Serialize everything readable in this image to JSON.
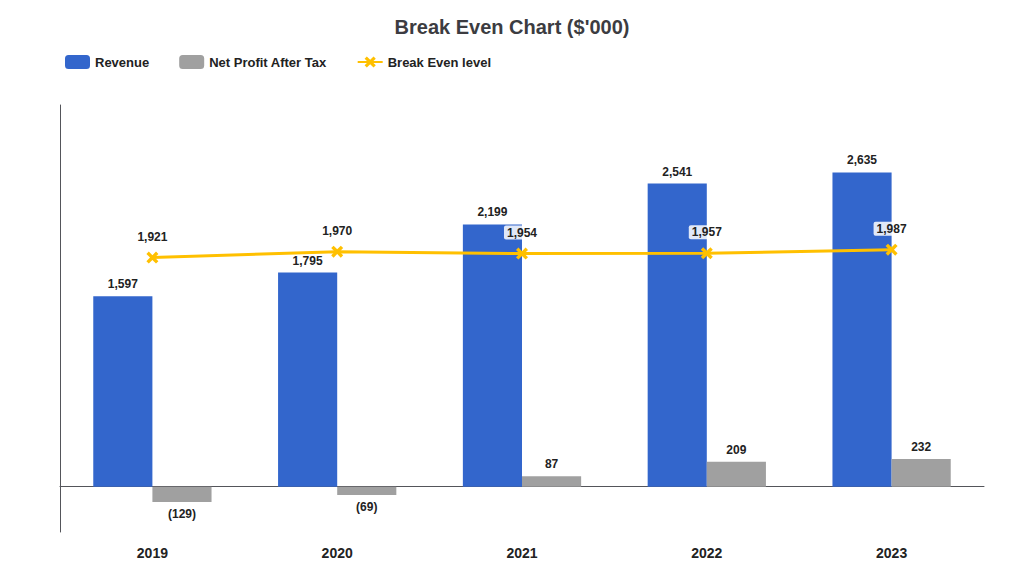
{
  "chart_data": {
    "type": "bar",
    "title": "Break Even Chart ($'000)",
    "categories": [
      "2019",
      "2020",
      "2021",
      "2022",
      "2023"
    ],
    "series": [
      {
        "name": "Revenue",
        "type": "bar",
        "color": "#3366CC",
        "values": [
          1597,
          1795,
          2199,
          2541,
          2635
        ],
        "value_labels": [
          "1,597",
          "1,795",
          "2,199",
          "2,541",
          "2,635"
        ]
      },
      {
        "name": "Net Profit After Tax",
        "type": "bar",
        "color": "#A0A0A0",
        "values": [
          -129,
          -69,
          87,
          209,
          232
        ],
        "value_labels": [
          "(129)",
          "(69)",
          "87",
          "209",
          "232"
        ]
      },
      {
        "name": "Break Even level",
        "type": "line",
        "color": "#FFC000",
        "marker": "x",
        "line_style": "solid",
        "values": [
          1921,
          1970,
          1954,
          1957,
          1987
        ],
        "value_labels": [
          "1,921",
          "1,970",
          "1,954",
          "1,957",
          "1,987"
        ]
      }
    ],
    "ylim": [
      -380,
      3200
    ],
    "grid": false,
    "legend": "upper left",
    "data_labels": true,
    "tick_labels": "x"
  }
}
